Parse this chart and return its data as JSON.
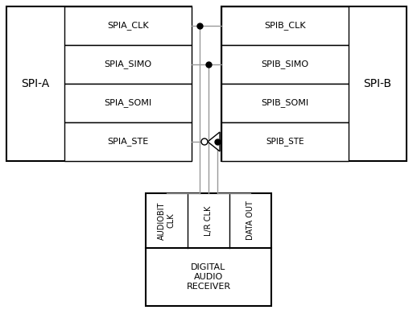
{
  "bg_color": "#ffffff",
  "line_color": "#999999",
  "box_color": "#000000",
  "spia_label": "SPI-A",
  "spib_label": "SPI-B",
  "spia_pins": [
    "SPIA_CLK",
    "SPIA_SIMO",
    "SPIA_SOMI",
    "SPIA_STE"
  ],
  "spib_pins": [
    "SPIB_CLK",
    "SPIB_SIMO",
    "SPIB_SOMI",
    "SPIB_STE"
  ],
  "dar_pins": [
    "AUDIOBIT\nCLK",
    "L/R CLK",
    "DATA OUT"
  ],
  "dar_label": "DIGITAL\nAUDIO\nRECEIVER"
}
